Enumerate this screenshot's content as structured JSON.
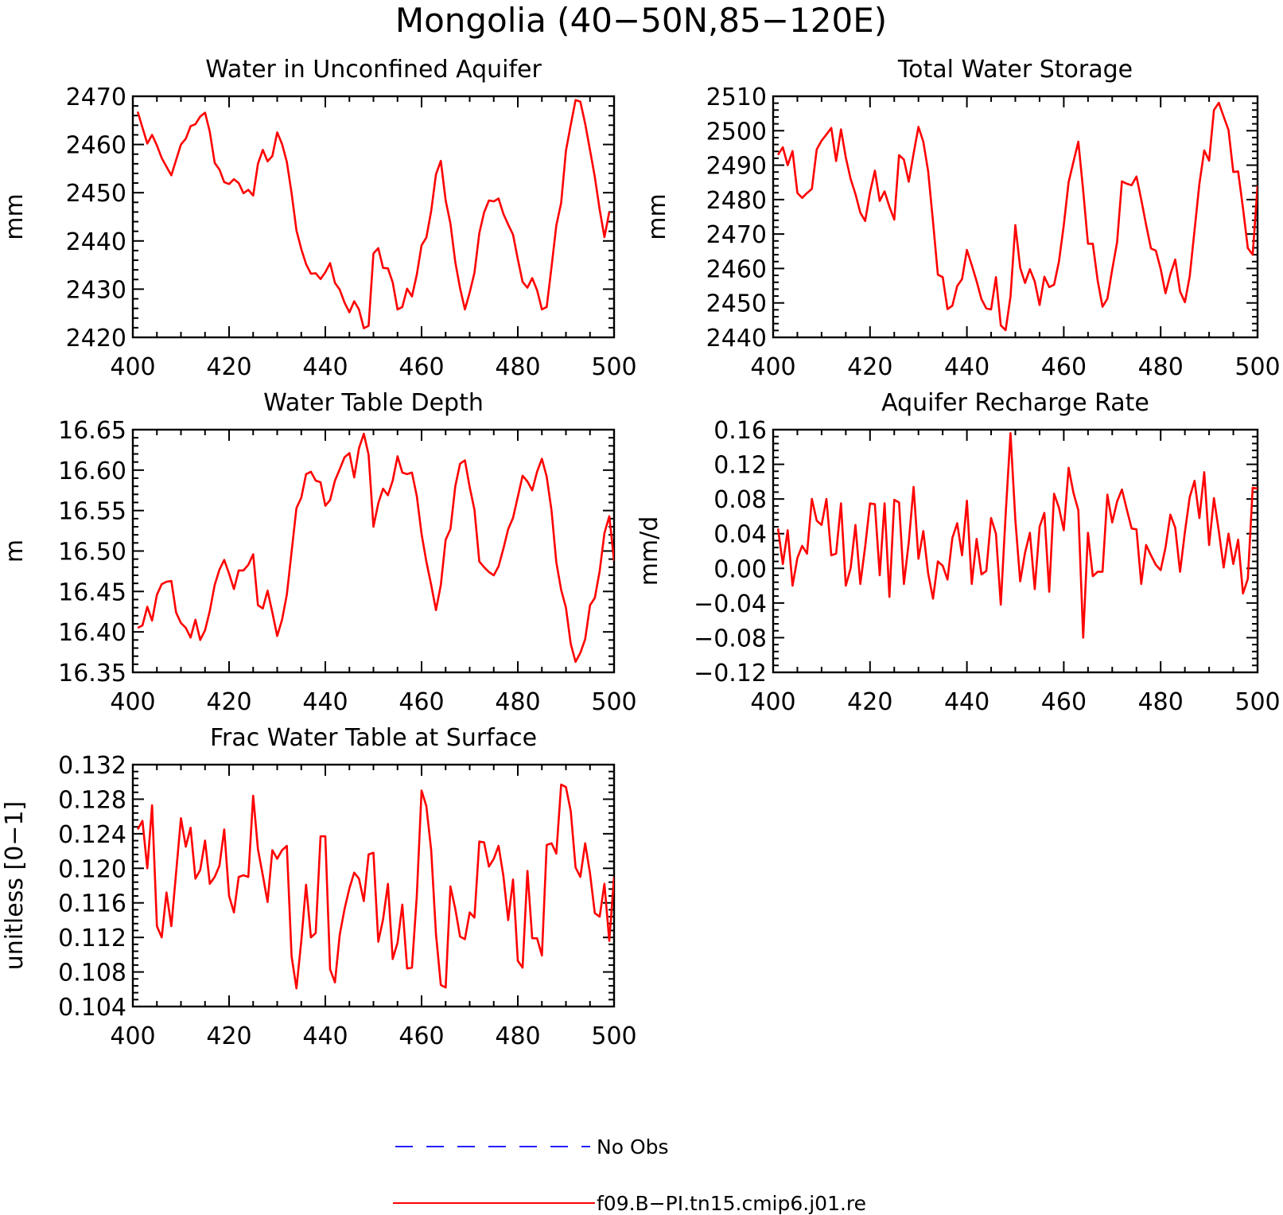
{
  "figure": {
    "title": "Mongolia (40−50N,85−120E)",
    "series_colors": {
      "model": "#ff0000",
      "obs": "#2020ff"
    },
    "legend": [
      {
        "label": "No Obs",
        "style": "dashed",
        "color": "#2020ff"
      },
      {
        "label": "f09.B−PI.tn15.cmip6.j01.re",
        "style": "solid",
        "color": "#ff0000"
      }
    ]
  },
  "chart_data": [
    {
      "type": "line",
      "title": "Water in Unconfined Aquifer",
      "ylabel": "mm",
      "xlim": [
        400,
        500
      ],
      "ylim": [
        2420,
        2470
      ],
      "xticks": [
        400,
        420,
        440,
        460,
        480,
        500
      ],
      "yticks": [
        2420,
        2430,
        2440,
        2450,
        2460,
        2470
      ],
      "ytick_labels": [
        "2420",
        "2430",
        "2440",
        "2450",
        "2460",
        "2470"
      ],
      "x_start": 401,
      "series": [
        {
          "values": [
            2466.8,
            2463.5,
            2460.2,
            2462.0,
            2459.8,
            2457.2,
            2455.4,
            2453.6,
            2456.8,
            2460.0,
            2461.2,
            2463.8,
            2464.2,
            2465.8,
            2466.6,
            2462.6,
            2456.2,
            2454.8,
            2452.2,
            2451.8,
            2452.8,
            2452.0,
            2449.9,
            2450.6,
            2449.4,
            2456.0,
            2458.9,
            2456.5,
            2457.6,
            2462.5,
            2460.1,
            2456.4,
            2449.9,
            2442.2,
            2438.3,
            2435.2,
            2433.2,
            2433.3,
            2432.1,
            2433.5,
            2435.4,
            2431.3,
            2429.9,
            2427.2,
            2425.2,
            2427.5,
            2425.8,
            2421.9,
            2422.4,
            2437.4,
            2438.5,
            2434.4,
            2434.3,
            2431.4,
            2425.8,
            2426.3,
            2430.1,
            2428.5,
            2433.0,
            2439.1,
            2440.7,
            2446.2,
            2453.8,
            2456.6,
            2448.4,
            2443.6,
            2435.6,
            2430.2,
            2425.8,
            2429.3,
            2433.4,
            2441.6,
            2445.9,
            2448.4,
            2448.2,
            2448.8,
            2445.6,
            2443.4,
            2441.3,
            2436.2,
            2431.5,
            2430.3,
            2432.3,
            2429.8,
            2425.8,
            2426.3,
            2434.6,
            2443.2,
            2447.9,
            2458.7,
            2464.1,
            2469.2,
            2468.9,
            2464.3,
            2458.8,
            2453.3,
            2446.5,
            2440.8,
            2446.0
          ]
        }
      ]
    },
    {
      "type": "line",
      "title": "Total Water Storage",
      "ylabel": "mm",
      "xlim": [
        400,
        500
      ],
      "ylim": [
        2440,
        2510
      ],
      "xticks": [
        400,
        420,
        440,
        460,
        480,
        500
      ],
      "yticks": [
        2440,
        2450,
        2460,
        2470,
        2480,
        2490,
        2500,
        2510
      ],
      "ytick_labels": [
        "2440",
        "2450",
        "2460",
        "2470",
        "2480",
        "2490",
        "2500",
        "2510"
      ],
      "x_start": 401,
      "series": [
        {
          "values": [
            2493.0,
            2495.2,
            2490.0,
            2494.1,
            2481.9,
            2480.5,
            2481.9,
            2483.1,
            2494.6,
            2497.1,
            2498.9,
            2500.8,
            2491.2,
            2500.4,
            2492.3,
            2486.0,
            2481.6,
            2476.2,
            2473.8,
            2482.1,
            2488.4,
            2479.6,
            2482.4,
            2477.9,
            2474.2,
            2492.9,
            2491.6,
            2485.2,
            2493.4,
            2501.1,
            2496.8,
            2488.2,
            2473.6,
            2458.2,
            2457.5,
            2448.2,
            2449.2,
            2454.9,
            2456.9,
            2465.4,
            2461.0,
            2456.3,
            2451.1,
            2448.4,
            2448.1,
            2457.5,
            2443.5,
            2442.1,
            2451.8,
            2472.6,
            2460.2,
            2455.8,
            2459.8,
            2456.2,
            2449.4,
            2457.6,
            2454.6,
            2455.3,
            2462.0,
            2472.6,
            2485.1,
            2491.0,
            2496.8,
            2482.6,
            2467.2,
            2467.2,
            2456.5,
            2448.9,
            2451.2,
            2459.7,
            2467.6,
            2485.3,
            2484.6,
            2484.2,
            2486.7,
            2480.0,
            2472.7,
            2465.8,
            2465.2,
            2459.9,
            2452.8,
            2458.3,
            2462.6,
            2453.3,
            2450.2,
            2457.7,
            2471.1,
            2484.6,
            2494.3,
            2491.3,
            2506.0,
            2508.1,
            2504.1,
            2500.2,
            2488.0,
            2488.2,
            2477.5,
            2465.9,
            2464.0,
            2484.0
          ]
        }
      ]
    },
    {
      "type": "line",
      "title": "Water Table Depth",
      "ylabel": "m",
      "xlim": [
        400,
        500
      ],
      "ylim": [
        16.35,
        16.65
      ],
      "xticks": [
        400,
        420,
        440,
        460,
        480,
        500
      ],
      "yticks": [
        16.35,
        16.4,
        16.45,
        16.5,
        16.55,
        16.6,
        16.65
      ],
      "ytick_labels": [
        "16.35",
        "16.40",
        "16.45",
        "16.50",
        "16.55",
        "16.60",
        "16.65"
      ],
      "x_start": 401,
      "series": [
        {
          "values": [
            16.405,
            16.408,
            16.431,
            16.414,
            16.446,
            16.459,
            16.462,
            16.463,
            16.424,
            16.411,
            16.405,
            16.393,
            16.415,
            16.39,
            16.402,
            16.426,
            16.458,
            16.477,
            16.489,
            16.472,
            16.453,
            16.476,
            16.476,
            16.483,
            16.496,
            16.433,
            16.429,
            16.451,
            16.424,
            16.395,
            16.415,
            16.446,
            16.499,
            16.553,
            16.566,
            16.595,
            16.598,
            16.587,
            16.585,
            16.556,
            16.563,
            16.587,
            16.601,
            16.616,
            16.621,
            16.591,
            16.627,
            16.645,
            16.619,
            16.53,
            16.559,
            16.577,
            16.569,
            16.587,
            16.617,
            16.597,
            16.595,
            16.597,
            16.568,
            16.521,
            16.487,
            16.458,
            16.427,
            16.458,
            16.514,
            16.527,
            16.58,
            16.608,
            16.612,
            16.579,
            16.551,
            16.487,
            16.48,
            16.474,
            16.47,
            16.481,
            16.503,
            16.527,
            16.541,
            16.567,
            16.593,
            16.586,
            16.575,
            16.598,
            16.614,
            16.592,
            16.55,
            16.486,
            16.452,
            16.43,
            16.385,
            16.363,
            16.374,
            16.391,
            16.433,
            16.442,
            16.475,
            16.522,
            16.543,
            16.488
          ]
        }
      ]
    },
    {
      "type": "line",
      "title": "Aquifer Recharge Rate",
      "ylabel": "mm/d",
      "xlim": [
        400,
        500
      ],
      "ylim": [
        -0.12,
        0.16
      ],
      "xticks": [
        400,
        420,
        440,
        460,
        480,
        500
      ],
      "yticks": [
        -0.12,
        -0.08,
        -0.04,
        0.0,
        0.04,
        0.08,
        0.12,
        0.16
      ],
      "ytick_labels": [
        "−0.12",
        "−0.08",
        "−0.04",
        "0.00",
        "0.04",
        "0.08",
        "0.12",
        "0.16"
      ],
      "x_start": 401,
      "series": [
        {
          "values": [
            0.046,
            0.005,
            0.044,
            -0.02,
            0.012,
            0.026,
            0.017,
            0.08,
            0.055,
            0.05,
            0.08,
            0.015,
            0.017,
            0.075,
            -0.02,
            0.0,
            0.05,
            -0.018,
            0.025,
            0.075,
            0.074,
            -0.008,
            0.075,
            -0.033,
            0.079,
            0.076,
            -0.018,
            0.03,
            0.094,
            0.011,
            0.043,
            -0.006,
            -0.035,
            0.008,
            0.003,
            -0.013,
            0.035,
            0.052,
            0.015,
            0.078,
            -0.018,
            0.034,
            -0.007,
            -0.003,
            0.058,
            0.04,
            -0.042,
            0.062,
            0.156,
            0.056,
            -0.015,
            0.018,
            0.041,
            -0.024,
            0.048,
            0.064,
            -0.027,
            0.086,
            0.07,
            0.044,
            0.116,
            0.087,
            0.067,
            -0.08,
            0.041,
            -0.009,
            -0.004,
            -0.004,
            0.085,
            0.053,
            0.077,
            0.091,
            0.068,
            0.046,
            0.045,
            -0.018,
            0.027,
            0.015,
            0.004,
            -0.002,
            0.024,
            0.062,
            0.047,
            -0.004,
            0.042,
            0.082,
            0.101,
            0.058,
            0.111,
            0.027,
            0.081,
            0.043,
            0.001,
            0.04,
            0.005,
            0.033,
            -0.029,
            -0.012,
            0.093,
            0.092
          ]
        }
      ]
    },
    {
      "type": "line",
      "title": "Frac Water Table at Surface",
      "ylabel": "unitless [0−1]",
      "xlim": [
        400,
        500
      ],
      "ylim": [
        0.104,
        0.132
      ],
      "xticks": [
        400,
        420,
        440,
        460,
        480,
        500
      ],
      "yticks": [
        0.104,
        0.108,
        0.112,
        0.116,
        0.12,
        0.124,
        0.128,
        0.132
      ],
      "ytick_labels": [
        "0.104",
        "0.108",
        "0.112",
        "0.116",
        "0.120",
        "0.124",
        "0.128",
        "0.132"
      ],
      "x_start": 401,
      "series": [
        {
          "values": [
            0.1245,
            0.1255,
            0.12,
            0.1273,
            0.1133,
            0.112,
            0.1172,
            0.1133,
            0.1195,
            0.1258,
            0.1225,
            0.1247,
            0.1188,
            0.1198,
            0.1232,
            0.1182,
            0.119,
            0.1203,
            0.1245,
            0.1168,
            0.1149,
            0.119,
            0.1192,
            0.119,
            0.1284,
            0.1222,
            0.1192,
            0.1161,
            0.1221,
            0.1211,
            0.1221,
            0.1226,
            0.1098,
            0.1061,
            0.1116,
            0.1181,
            0.112,
            0.1125,
            0.1237,
            0.1237,
            0.1083,
            0.1068,
            0.1123,
            0.1153,
            0.1177,
            0.1195,
            0.1188,
            0.1162,
            0.1216,
            0.1218,
            0.1115,
            0.1141,
            0.1182,
            0.1095,
            0.1114,
            0.1158,
            0.1084,
            0.1085,
            0.1168,
            0.129,
            0.1272,
            0.1221,
            0.1124,
            0.1065,
            0.1062,
            0.1179,
            0.1153,
            0.1121,
            0.1118,
            0.1149,
            0.1143,
            0.1231,
            0.123,
            0.1202,
            0.1211,
            0.1226,
            0.1191,
            0.114,
            0.1187,
            0.1093,
            0.1085,
            0.1197,
            0.1119,
            0.1119,
            0.1099,
            0.1227,
            0.1229,
            0.1217,
            0.1297,
            0.1294,
            0.1266,
            0.1201,
            0.119,
            0.1229,
            0.1194,
            0.1148,
            0.1144,
            0.1182,
            0.1116,
            0.119
          ]
        }
      ]
    }
  ]
}
